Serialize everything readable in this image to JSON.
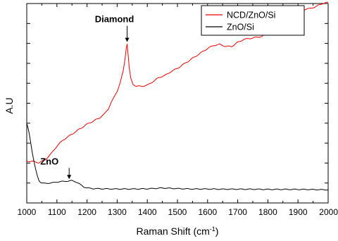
{
  "chart_data": {
    "type": "line",
    "title": "",
    "xlabel": "Raman Shift (cm",
    "xlabel_sup": "-1",
    "xlabel_end": ")",
    "ylabel": "A.U",
    "xlim": [
      1000,
      2000
    ],
    "ylim": [
      0,
      100
    ],
    "x_ticks": [
      1000,
      1100,
      1200,
      1300,
      1400,
      1500,
      1600,
      1700,
      1800,
      1900,
      2000
    ],
    "grid": false,
    "legend_position": "top-right",
    "series": [
      {
        "name": "NCD/ZnO/Si",
        "color": "#ee0000",
        "points": [
          [
            1000,
            21
          ],
          [
            1020,
            20.8
          ],
          [
            1040,
            20.2
          ],
          [
            1060,
            21.5
          ],
          [
            1080,
            24.5
          ],
          [
            1100,
            28.5
          ],
          [
            1120,
            31.5
          ],
          [
            1140,
            33.5
          ],
          [
            1160,
            35.5
          ],
          [
            1180,
            37.5
          ],
          [
            1200,
            39.5
          ],
          [
            1220,
            41
          ],
          [
            1240,
            42.5
          ],
          [
            1260,
            45
          ],
          [
            1270,
            47
          ],
          [
            1280,
            50.5
          ],
          [
            1290,
            53
          ],
          [
            1300,
            56
          ],
          [
            1310,
            60.5
          ],
          [
            1320,
            66
          ],
          [
            1326,
            72
          ],
          [
            1330,
            77.5
          ],
          [
            1333,
            80
          ],
          [
            1336,
            75
          ],
          [
            1340,
            68
          ],
          [
            1345,
            62.5
          ],
          [
            1352,
            59.5
          ],
          [
            1365,
            58.5
          ],
          [
            1380,
            58.5
          ],
          [
            1400,
            59
          ],
          [
            1420,
            61
          ],
          [
            1440,
            63
          ],
          [
            1460,
            64
          ],
          [
            1480,
            66
          ],
          [
            1500,
            67.5
          ],
          [
            1520,
            69.5
          ],
          [
            1540,
            71.5
          ],
          [
            1560,
            73.5
          ],
          [
            1580,
            75.5
          ],
          [
            1600,
            77.5
          ],
          [
            1620,
            79
          ],
          [
            1640,
            79.5
          ],
          [
            1660,
            78.5
          ],
          [
            1680,
            78.5
          ],
          [
            1700,
            80.5
          ],
          [
            1720,
            82
          ],
          [
            1740,
            82.5
          ],
          [
            1760,
            83
          ],
          [
            1780,
            83.5
          ],
          [
            1800,
            85.5
          ],
          [
            1820,
            88
          ],
          [
            1840,
            90
          ],
          [
            1860,
            92.5
          ],
          [
            1880,
            95
          ],
          [
            1900,
            96
          ],
          [
            1920,
            97
          ],
          [
            1940,
            97.5
          ],
          [
            1960,
            98.5
          ],
          [
            1980,
            100
          ],
          [
            2000,
            100.5
          ]
        ]
      },
      {
        "name": "ZnO/Si",
        "color": "#000000",
        "points": [
          [
            1000,
            40
          ],
          [
            1005,
            37
          ],
          [
            1010,
            33
          ],
          [
            1015,
            28.5
          ],
          [
            1020,
            24
          ],
          [
            1025,
            20
          ],
          [
            1030,
            16.5
          ],
          [
            1035,
            13.5
          ],
          [
            1040,
            11.5
          ],
          [
            1045,
            10.5
          ],
          [
            1050,
            10
          ],
          [
            1060,
            9.8
          ],
          [
            1080,
            10
          ],
          [
            1100,
            10.5
          ],
          [
            1120,
            10.8
          ],
          [
            1140,
            11
          ],
          [
            1150,
            11.2
          ],
          [
            1160,
            10.8
          ],
          [
            1170,
            10
          ],
          [
            1180,
            9
          ],
          [
            1190,
            8
          ],
          [
            1200,
            7.5
          ],
          [
            1220,
            7.2
          ],
          [
            1250,
            7.1
          ],
          [
            1300,
            7
          ],
          [
            1350,
            7
          ],
          [
            1400,
            7.1
          ],
          [
            1450,
            7.5
          ],
          [
            1500,
            7.2
          ],
          [
            1550,
            7
          ],
          [
            1600,
            7
          ],
          [
            1650,
            6.9
          ],
          [
            1700,
            6.9
          ],
          [
            1750,
            6.9
          ],
          [
            1800,
            6.8
          ],
          [
            1850,
            6.8
          ],
          [
            1900,
            6.8
          ],
          [
            1950,
            6.7
          ],
          [
            2000,
            6.6
          ]
        ]
      }
    ],
    "annotations": [
      {
        "text": "Diamond",
        "x": 1333,
        "y": 80
      },
      {
        "text": "ZnO",
        "x": 1150,
        "y": 11.2
      }
    ]
  }
}
